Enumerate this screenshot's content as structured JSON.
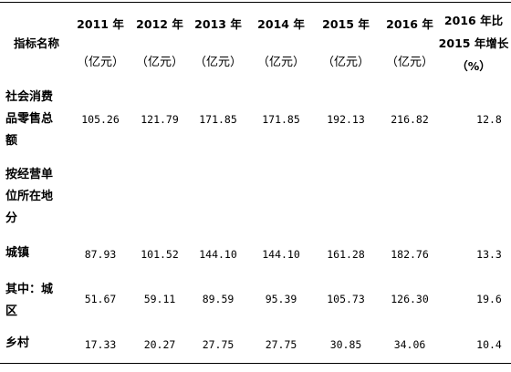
{
  "table": {
    "header": {
      "indicator_label": "指标名称",
      "columns": [
        {
          "year": "2011 年",
          "unit": "（亿元）"
        },
        {
          "year": "2012 年",
          "unit": "（亿元）"
        },
        {
          "year": "2013 年",
          "unit": "（亿元）"
        },
        {
          "year": "2014 年",
          "unit": "（亿元）"
        },
        {
          "year": "2015 年",
          "unit": "（亿元）"
        },
        {
          "year": "2016 年",
          "unit": "（亿元）"
        }
      ],
      "growth": {
        "line1": "2016 年比",
        "line2": "2015 年增长",
        "line3": "（%）"
      }
    },
    "rows": [
      {
        "label_lines": [
          "社会消费",
          "品零售总",
          "额"
        ],
        "values": [
          "105.26",
          "121.79",
          "171.85",
          "171.85",
          "192.13",
          "216.82"
        ],
        "growth": "12.8"
      },
      {
        "label_lines": [
          "按经营单",
          "位所在地",
          "分"
        ],
        "values": [
          "",
          "",
          "",
          "",
          "",
          ""
        ],
        "growth": ""
      },
      {
        "label_lines": [
          "城镇"
        ],
        "values": [
          "87.93",
          "101.52",
          "144.10",
          "144.10",
          "161.28",
          "182.76"
        ],
        "growth": "13.3"
      },
      {
        "label_lines": [
          "其中：城",
          "区"
        ],
        "values": [
          "51.67",
          "59.11",
          "89.59",
          "95.39",
          "105.73",
          "126.30"
        ],
        "growth": "19.6"
      },
      {
        "label_lines": [
          "乡村"
        ],
        "values": [
          "17.33",
          "20.27",
          "27.75",
          "27.75",
          "30.85",
          "34.06"
        ],
        "growth": "10.4"
      }
    ]
  }
}
